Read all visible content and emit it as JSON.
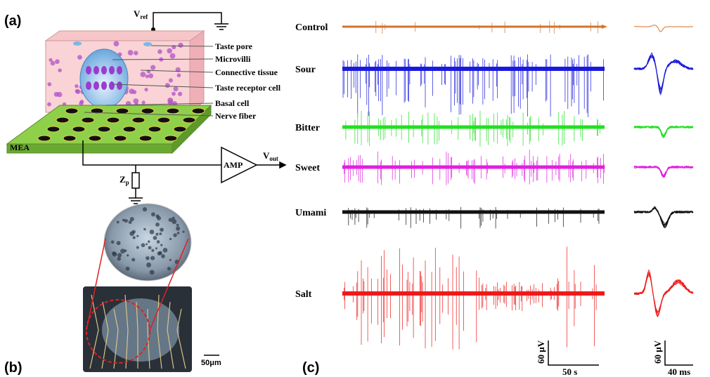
{
  "panels": {
    "a": "(a)",
    "b": "(b)",
    "c": "(c)"
  },
  "diagram": {
    "vref": "V",
    "vref_sub": "ref",
    "labels": [
      "Taste pore",
      "Microvilli",
      "Connective tissue",
      "Taste receptor cell",
      "Basal cell",
      "Nerve fiber"
    ],
    "mea": "MEA",
    "amp": "AMP",
    "vout": "V",
    "vout_sub": "out",
    "zp": "Z",
    "zp_sub": "p"
  },
  "scale_bar_b": "50μm",
  "traces": [
    {
      "name": "Control",
      "color": "#d2732c"
    },
    {
      "name": "Sour",
      "color": "#1a1adc"
    },
    {
      "name": "Bitter",
      "color": "#22e022"
    },
    {
      "name": "Sweet",
      "color": "#e020e0"
    },
    {
      "name": "Umami",
      "color": "#111111"
    },
    {
      "name": "Salt",
      "color": "#ee1a1a"
    }
  ],
  "scale_bars": {
    "left_v": "60 μV",
    "left_t": "50 s",
    "right_v": "60 μV",
    "right_t": "40 ms"
  }
}
